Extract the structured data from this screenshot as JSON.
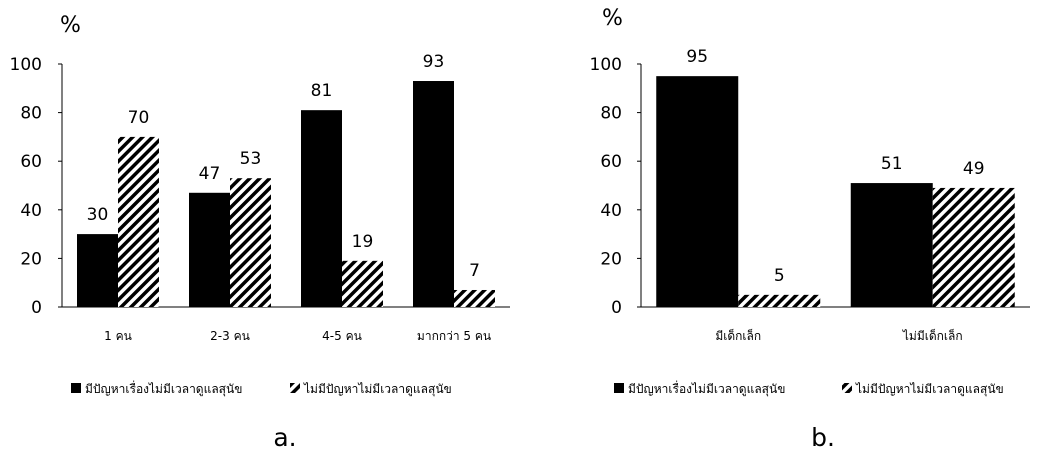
{
  "legend": {
    "solid": "มีปัญหาเรื่องไม่มีเวลาดูแลสุนัข",
    "striped": "ไม่มีปัญหาไม่มีเวลาดูแลสุนัข"
  },
  "chart_data": [
    {
      "type": "bar",
      "panel_label": "a.",
      "ylabel": "%",
      "ylim": [
        0,
        100
      ],
      "yticks": [
        0,
        20,
        40,
        60,
        80,
        100
      ],
      "categories": [
        "1 คน",
        "2-3 คน",
        "4-5 คน",
        "มากกว่า 5 คน"
      ],
      "series": [
        {
          "name": "มีปัญหาเรื่องไม่มีเวลาดูแลสุนัข",
          "fill": "solid",
          "values": [
            30,
            47,
            81,
            93
          ]
        },
        {
          "name": "ไม่มีปัญหาไม่มีเวลาดูแลสุนัข",
          "fill": "striped",
          "values": [
            70,
            53,
            19,
            7
          ]
        }
      ],
      "legend_position": "bottom",
      "grid": false
    },
    {
      "type": "bar",
      "panel_label": "b.",
      "ylabel": "%",
      "ylim": [
        0,
        100
      ],
      "yticks": [
        0,
        20,
        40,
        60,
        80,
        100
      ],
      "categories": [
        "มีเด็กเล็ก",
        "ไม่มีเด็กเล็ก"
      ],
      "series": [
        {
          "name": "มีปัญหาเรื่องไม่มีเวลาดูแลสุนัข",
          "fill": "solid",
          "values": [
            95,
            51
          ]
        },
        {
          "name": "ไม่มีปัญหาไม่มีเวลาดูแลสุนัข",
          "fill": "striped",
          "values": [
            5,
            49
          ]
        }
      ],
      "legend_position": "bottom",
      "grid": false
    }
  ]
}
